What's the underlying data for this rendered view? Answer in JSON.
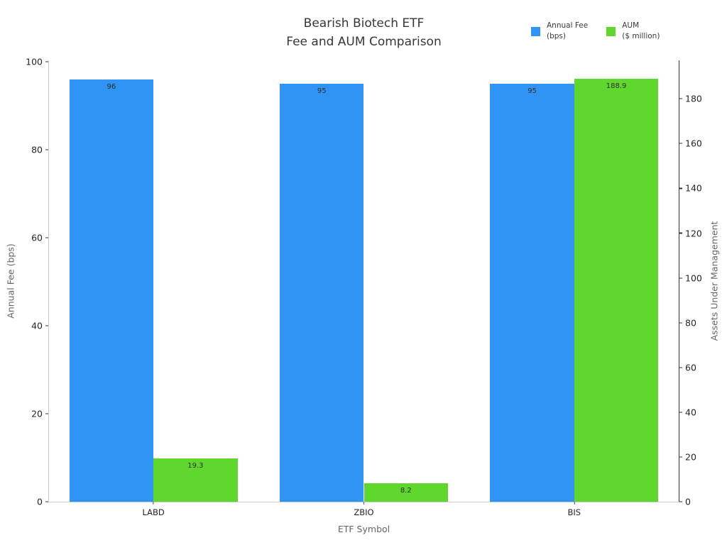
{
  "title": {
    "line1": "Bearish Biotech ETF",
    "line2": "Fee and AUM Comparison"
  },
  "chart_data": {
    "type": "bar",
    "categories": [
      "LABD",
      "ZBIO",
      "BIS"
    ],
    "series": [
      {
        "id": "annual-fee",
        "name": "Annual Fee (bps)",
        "legend": [
          "Annual Fee",
          "(bps)"
        ],
        "axis": "left",
        "color": "#2f94f3",
        "values": [
          96,
          95,
          95
        ],
        "labels": [
          "96",
          "95",
          "95"
        ]
      },
      {
        "id": "aum",
        "name": "AUM ($ million)",
        "legend": [
          "AUM",
          "($ million)"
        ],
        "axis": "right",
        "color": "#5fd72d",
        "values": [
          19.3,
          8.2,
          188.9
        ],
        "labels": [
          "19.3",
          "8.2",
          "188.9"
        ]
      }
    ],
    "x_axis": {
      "label": "ETF Symbol"
    },
    "left_axis": {
      "label": "Annual Fee (bps)",
      "range": [
        0,
        100.3
      ],
      "ticks": [
        0,
        20,
        40,
        60,
        80,
        100
      ]
    },
    "right_axis": {
      "label": "Assets Under Management",
      "range": [
        0,
        197.2
      ],
      "ticks": [
        0,
        20,
        40,
        60,
        80,
        100,
        120,
        140,
        160,
        180
      ]
    },
    "legend_position": "top-right",
    "grid": false
  }
}
